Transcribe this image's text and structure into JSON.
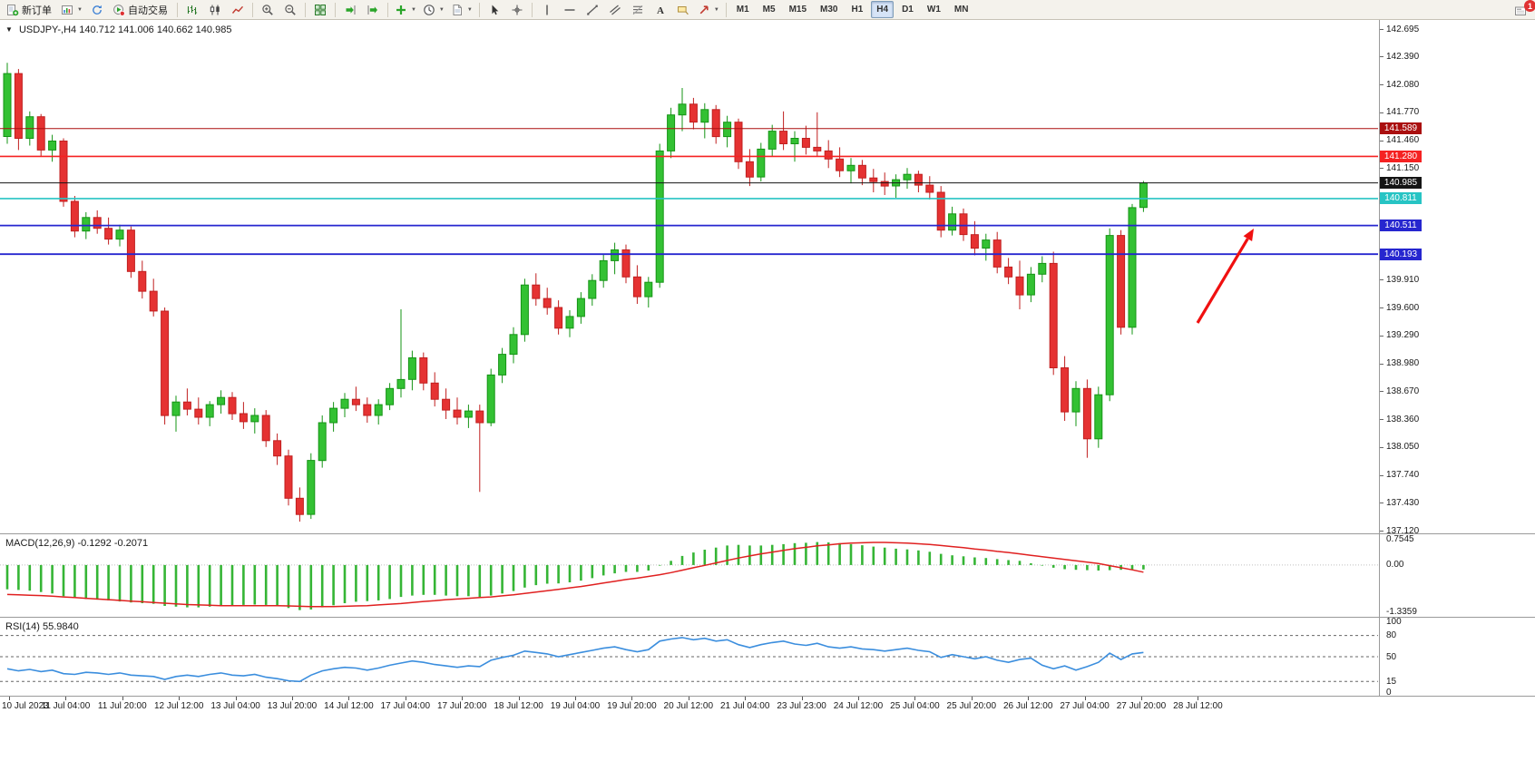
{
  "toolbar": {
    "items": [
      {
        "icon": "new-order",
        "label": "新订单"
      },
      {
        "icon": "new-chart",
        "dropdown": true
      },
      {
        "icon": "refresh"
      },
      {
        "icon": "auto-trading",
        "label": "自动交易"
      },
      {
        "separator": true
      },
      {
        "icon": "bar-chart"
      },
      {
        "icon": "candlestick"
      },
      {
        "icon": "line-chart"
      },
      {
        "separator": true
      },
      {
        "icon": "zoom-in"
      },
      {
        "icon": "zoom-out"
      },
      {
        "separator": true
      },
      {
        "icon": "tile-windows"
      },
      {
        "separator": true
      },
      {
        "icon": "auto-scroll"
      },
      {
        "icon": "chart-shift"
      },
      {
        "separator": true
      },
      {
        "icon": "indicators",
        "dropdown": true
      },
      {
        "icon": "periods",
        "dropdown": true
      },
      {
        "icon": "templates",
        "dropdown": true
      },
      {
        "separator": true
      },
      {
        "icon": "cursor"
      },
      {
        "icon": "crosshair"
      },
      {
        "separator": true
      },
      {
        "icon": "vertical-line"
      },
      {
        "icon": "horizontal-line"
      },
      {
        "icon": "trendline"
      },
      {
        "icon": "equidistant-channel"
      },
      {
        "icon": "fibonacci"
      },
      {
        "icon": "text"
      },
      {
        "icon": "text-label"
      },
      {
        "icon": "arrows",
        "dropdown": true
      },
      {
        "separator": true
      }
    ],
    "timeframes": [
      {
        "label": "M1"
      },
      {
        "label": "M5"
      },
      {
        "label": "M15"
      },
      {
        "label": "M30"
      },
      {
        "label": "H1"
      },
      {
        "label": "H4",
        "active": true
      },
      {
        "label": "D1"
      },
      {
        "label": "W1"
      },
      {
        "label": "MN"
      }
    ],
    "notification_count": "1"
  },
  "chart": {
    "collapse_marker": "▼",
    "symbol_period": "USDJPY-,H4",
    "ohlc": "140.712 141.006 140.662 140.985",
    "macd_label": "MACD(12,26,9) -0.1292 -0.2071",
    "rsi_label": "RSI(14) 55.9840"
  },
  "chart_data": {
    "type": "candlestick",
    "symbol": "USDJPY-",
    "timeframe": "H4",
    "price_axis": {
      "min": 137.12,
      "max": 142.695,
      "labels": [
        "142.695",
        "142.390",
        "142.080",
        "141.770",
        "141.460",
        "141.150",
        "139.910",
        "139.600",
        "139.290",
        "138.980",
        "138.670",
        "138.360",
        "138.050",
        "137.740",
        "137.430",
        "137.120"
      ]
    },
    "levels": [
      {
        "price": 141.589,
        "label": "141.589",
        "color": "#aa0f0f",
        "width": 1
      },
      {
        "price": 141.28,
        "label": "141.280",
        "color": "#f52222",
        "width": 1.6
      },
      {
        "price": 140.985,
        "label": "140.985",
        "color": "#151515",
        "width": 1
      },
      {
        "price": 140.811,
        "label": "140.811",
        "color": "#27c4c4",
        "width": 1.6
      },
      {
        "price": 140.511,
        "label": "140.511",
        "color": "#2626cf",
        "width": 1.8
      },
      {
        "price": 140.193,
        "label": "140.193",
        "color": "#2626cf",
        "width": 1.8
      }
    ],
    "candles": [
      [
        141.5,
        142.32,
        141.42,
        142.2
      ],
      [
        142.2,
        142.25,
        141.35,
        141.48
      ],
      [
        141.48,
        141.78,
        141.4,
        141.72
      ],
      [
        141.72,
        141.75,
        141.28,
        141.35
      ],
      [
        141.35,
        141.52,
        141.22,
        141.45
      ],
      [
        141.45,
        141.48,
        140.72,
        140.78
      ],
      [
        140.78,
        140.84,
        140.38,
        140.45
      ],
      [
        140.45,
        140.66,
        140.36,
        140.6
      ],
      [
        140.6,
        140.68,
        140.42,
        140.48
      ],
      [
        140.48,
        140.6,
        140.3,
        140.36
      ],
      [
        140.36,
        140.52,
        140.28,
        140.46
      ],
      [
        140.46,
        140.5,
        139.93,
        140.0
      ],
      [
        140.0,
        140.12,
        139.7,
        139.78
      ],
      [
        139.78,
        139.92,
        139.5,
        139.56
      ],
      [
        139.56,
        139.6,
        138.3,
        138.4
      ],
      [
        138.4,
        138.62,
        138.22,
        138.55
      ],
      [
        138.55,
        138.7,
        138.4,
        138.47
      ],
      [
        138.47,
        138.6,
        138.3,
        138.38
      ],
      [
        138.38,
        138.56,
        138.28,
        138.52
      ],
      [
        138.52,
        138.68,
        138.42,
        138.6
      ],
      [
        138.6,
        138.66,
        138.35,
        138.42
      ],
      [
        138.42,
        138.55,
        138.25,
        138.33
      ],
      [
        138.33,
        138.48,
        138.2,
        138.4
      ],
      [
        138.4,
        138.46,
        138.05,
        138.12
      ],
      [
        138.12,
        138.2,
        137.85,
        137.95
      ],
      [
        137.95,
        138.02,
        137.4,
        137.48
      ],
      [
        137.48,
        137.6,
        137.22,
        137.3
      ],
      [
        137.3,
        137.98,
        137.25,
        137.9
      ],
      [
        137.9,
        138.4,
        137.82,
        138.32
      ],
      [
        138.32,
        138.55,
        138.22,
        138.48
      ],
      [
        138.48,
        138.65,
        138.38,
        138.58
      ],
      [
        138.58,
        138.72,
        138.45,
        138.52
      ],
      [
        138.52,
        138.6,
        138.32,
        138.4
      ],
      [
        138.4,
        138.58,
        138.3,
        138.52
      ],
      [
        138.52,
        138.76,
        138.46,
        138.7
      ],
      [
        138.7,
        139.58,
        138.6,
        138.8
      ],
      [
        138.8,
        139.12,
        138.68,
        139.04
      ],
      [
        139.04,
        139.1,
        138.68,
        138.76
      ],
      [
        138.76,
        138.88,
        138.5,
        138.58
      ],
      [
        138.58,
        138.7,
        138.36,
        138.46
      ],
      [
        138.46,
        138.6,
        138.3,
        138.38
      ],
      [
        138.38,
        138.52,
        138.26,
        138.45
      ],
      [
        138.45,
        138.52,
        137.55,
        138.32
      ],
      [
        138.32,
        138.92,
        138.28,
        138.85
      ],
      [
        138.85,
        139.15,
        138.76,
        139.08
      ],
      [
        139.08,
        139.38,
        138.98,
        139.3
      ],
      [
        139.3,
        139.92,
        139.22,
        139.85
      ],
      [
        139.85,
        139.98,
        139.62,
        139.7
      ],
      [
        139.7,
        139.82,
        139.52,
        139.6
      ],
      [
        139.6,
        139.68,
        139.3,
        139.37
      ],
      [
        139.37,
        139.57,
        139.27,
        139.5
      ],
      [
        139.5,
        139.77,
        139.42,
        139.7
      ],
      [
        139.7,
        139.97,
        139.62,
        139.9
      ],
      [
        139.9,
        140.2,
        139.82,
        140.12
      ],
      [
        140.12,
        140.32,
        139.97,
        140.24
      ],
      [
        140.24,
        140.3,
        139.87,
        139.94
      ],
      [
        139.94,
        140.07,
        139.64,
        139.72
      ],
      [
        139.72,
        139.94,
        139.6,
        139.88
      ],
      [
        139.88,
        141.42,
        139.82,
        141.34
      ],
      [
        141.34,
        141.82,
        141.26,
        141.74
      ],
      [
        141.74,
        142.04,
        141.56,
        141.86
      ],
      [
        141.86,
        141.93,
        141.58,
        141.66
      ],
      [
        141.66,
        141.87,
        141.48,
        141.8
      ],
      [
        141.8,
        141.85,
        141.42,
        141.5
      ],
      [
        141.5,
        141.73,
        141.38,
        141.66
      ],
      [
        141.66,
        141.7,
        141.14,
        141.22
      ],
      [
        141.22,
        141.36,
        140.95,
        141.05
      ],
      [
        141.05,
        141.43,
        141.0,
        141.36
      ],
      [
        141.36,
        141.63,
        141.28,
        141.56
      ],
      [
        141.56,
        141.78,
        141.35,
        141.42
      ],
      [
        141.42,
        141.56,
        141.22,
        141.48
      ],
      [
        141.48,
        141.62,
        141.3,
        141.38
      ],
      [
        141.38,
        141.77,
        141.28,
        141.34
      ],
      [
        141.34,
        141.46,
        141.15,
        141.25
      ],
      [
        141.25,
        141.38,
        141.05,
        141.12
      ],
      [
        141.12,
        141.26,
        140.98,
        141.18
      ],
      [
        141.18,
        141.24,
        140.96,
        141.04
      ],
      [
        141.04,
        141.14,
        140.88,
        141.0
      ],
      [
        141.0,
        141.1,
        140.85,
        140.95
      ],
      [
        140.95,
        141.08,
        140.82,
        141.02
      ],
      [
        141.02,
        141.15,
        140.92,
        141.08
      ],
      [
        141.08,
        141.12,
        140.88,
        140.96
      ],
      [
        140.96,
        141.06,
        140.8,
        140.88
      ],
      [
        140.88,
        140.95,
        140.38,
        140.46
      ],
      [
        140.46,
        140.72,
        140.4,
        140.64
      ],
      [
        140.64,
        140.7,
        140.34,
        140.41
      ],
      [
        140.41,
        140.56,
        140.18,
        140.26
      ],
      [
        140.26,
        140.42,
        140.12,
        140.35
      ],
      [
        140.35,
        140.44,
        139.98,
        140.05
      ],
      [
        140.05,
        140.15,
        139.86,
        139.94
      ],
      [
        139.94,
        140.12,
        139.58,
        139.74
      ],
      [
        139.74,
        140.05,
        139.66,
        139.97
      ],
      [
        139.97,
        140.17,
        139.88,
        140.09
      ],
      [
        140.09,
        140.22,
        138.85,
        138.93
      ],
      [
        138.93,
        139.06,
        138.34,
        138.44
      ],
      [
        138.44,
        138.78,
        138.28,
        138.7
      ],
      [
        138.7,
        138.8,
        137.93,
        138.14
      ],
      [
        138.14,
        138.72,
        138.04,
        138.63
      ],
      [
        138.63,
        140.48,
        138.56,
        140.4
      ],
      [
        140.4,
        140.46,
        139.3,
        139.38
      ],
      [
        139.38,
        140.75,
        139.3,
        140.71
      ],
      [
        140.712,
        141.006,
        140.662,
        140.985
      ]
    ],
    "time_labels": [
      "10 Jul 2023",
      "11 Jul 04:00",
      "11 Jul 20:00",
      "12 Jul 12:00",
      "13 Jul 04:00",
      "13 Jul 20:00",
      "14 Jul 12:00",
      "17 Jul 04:00",
      "17 Jul 20:00",
      "18 Jul 12:00",
      "19 Jul 04:00",
      "19 Jul 20:00",
      "20 Jul 12:00",
      "21 Jul 04:00",
      "23 Jul 23:00",
      "24 Jul 12:00",
      "25 Jul 04:00",
      "25 Jul 20:00",
      "26 Jul 12:00",
      "27 Jul 04:00",
      "27 Jul 20:00",
      "28 Jul 12:00"
    ],
    "macd": {
      "title": "MACD(12,26,9)",
      "main_value": -0.1292,
      "signal_value": -0.2071,
      "axis_labels": [
        "0.7545",
        "0.00",
        "-1.3359"
      ],
      "range": [
        -1.3359,
        0.7545
      ],
      "histogram": [
        -0.7,
        -0.72,
        -0.74,
        -0.78,
        -0.82,
        -0.9,
        -0.95,
        -0.98,
        -1.0,
        -1.02,
        -1.05,
        -1.08,
        -1.1,
        -1.12,
        -1.18,
        -1.2,
        -1.22,
        -1.22,
        -1.2,
        -1.18,
        -1.16,
        -1.15,
        -1.14,
        -1.15,
        -1.18,
        -1.24,
        -1.3,
        -1.28,
        -1.22,
        -1.16,
        -1.1,
        -1.06,
        -1.04,
        -1.02,
        -0.98,
        -0.92,
        -0.88,
        -0.86,
        -0.86,
        -0.88,
        -0.9,
        -0.9,
        -0.92,
        -0.88,
        -0.82,
        -0.75,
        -0.65,
        -0.58,
        -0.54,
        -0.53,
        -0.5,
        -0.45,
        -0.38,
        -0.3,
        -0.24,
        -0.2,
        -0.2,
        -0.16,
        -0.02,
        0.12,
        0.26,
        0.36,
        0.44,
        0.5,
        0.56,
        0.58,
        0.56,
        0.56,
        0.58,
        0.6,
        0.63,
        0.64,
        0.66,
        0.65,
        0.63,
        0.6,
        0.57,
        0.53,
        0.5,
        0.47,
        0.45,
        0.42,
        0.38,
        0.32,
        0.28,
        0.25,
        0.22,
        0.2,
        0.17,
        0.14,
        0.12,
        0.05,
        -0.02,
        -0.08,
        -0.12,
        -0.14,
        -0.15,
        -0.16,
        -0.15,
        -0.14,
        -0.13,
        -0.1292
      ],
      "signal": [
        -0.85,
        -0.86,
        -0.87,
        -0.88,
        -0.9,
        -0.92,
        -0.94,
        -0.96,
        -0.98,
        -1.0,
        -1.02,
        -1.04,
        -1.06,
        -1.08,
        -1.1,
        -1.12,
        -1.14,
        -1.15,
        -1.16,
        -1.17,
        -1.17,
        -1.17,
        -1.17,
        -1.17,
        -1.17,
        -1.18,
        -1.19,
        -1.2,
        -1.2,
        -1.2,
        -1.19,
        -1.18,
        -1.17,
        -1.15,
        -1.13,
        -1.11,
        -1.08,
        -1.05,
        -1.03,
        -1.0,
        -0.98,
        -0.96,
        -0.94,
        -0.92,
        -0.89,
        -0.86,
        -0.82,
        -0.78,
        -0.74,
        -0.7,
        -0.66,
        -0.62,
        -0.57,
        -0.52,
        -0.47,
        -0.42,
        -0.38,
        -0.33,
        -0.28,
        -0.22,
        -0.15,
        -0.08,
        -0.01,
        0.06,
        0.13,
        0.2,
        0.26,
        0.32,
        0.37,
        0.42,
        0.47,
        0.51,
        0.55,
        0.58,
        0.61,
        0.63,
        0.64,
        0.65,
        0.65,
        0.64,
        0.63,
        0.61,
        0.59,
        0.56,
        0.53,
        0.5,
        0.46,
        0.43,
        0.39,
        0.36,
        0.32,
        0.28,
        0.24,
        0.2,
        0.16,
        0.12,
        0.08,
        0.04,
        -0.02,
        -0.08,
        -0.14,
        -0.2071
      ]
    },
    "rsi": {
      "title": "RSI(14)",
      "value": 55.984,
      "axis_labels": [
        "100",
        "80",
        "50",
        "15",
        "0"
      ],
      "levels": [
        80,
        50,
        15
      ],
      "range": [
        0,
        100
      ],
      "values": [
        33,
        30,
        32,
        29,
        31,
        26,
        25,
        28,
        27,
        25,
        27,
        24,
        23,
        22,
        18,
        22,
        24,
        22,
        25,
        27,
        24,
        23,
        25,
        21,
        19,
        16,
        15,
        24,
        30,
        33,
        35,
        34,
        31,
        34,
        38,
        41,
        44,
        42,
        39,
        37,
        35,
        37,
        36,
        45,
        49,
        52,
        58,
        56,
        54,
        50,
        53,
        56,
        59,
        62,
        64,
        60,
        57,
        60,
        72,
        75,
        77,
        74,
        76,
        72,
        74,
        67,
        63,
        67,
        70,
        72,
        68,
        66,
        69,
        64,
        62,
        64,
        61,
        60,
        58,
        60,
        62,
        59,
        57,
        49,
        53,
        50,
        47,
        50,
        45,
        42,
        46,
        48,
        38,
        33,
        37,
        31,
        36,
        42,
        55,
        46,
        54,
        55.984
      ]
    },
    "annotation_arrow": {
      "color": "#f01010",
      "from": [
        1320,
        334
      ],
      "to": [
        1382,
        230
      ]
    }
  }
}
